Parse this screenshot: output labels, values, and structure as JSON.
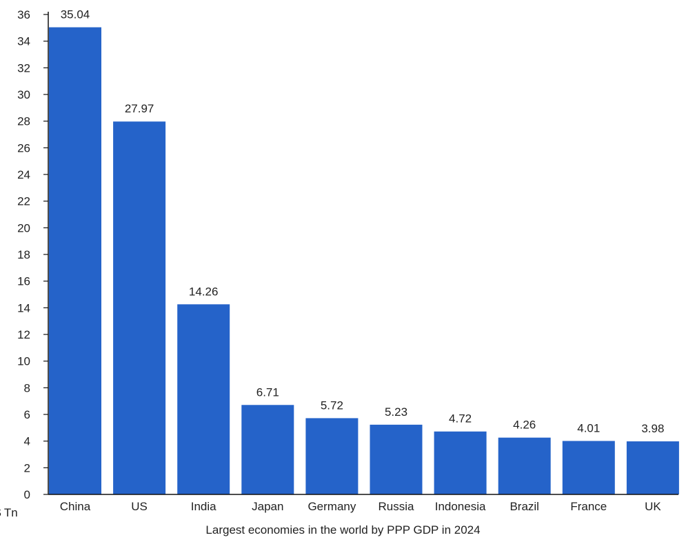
{
  "caption": "Largest economies in the world by PPP GDP in 2024",
  "chart_data": {
    "type": "bar",
    "title": "Largest economies in the world by PPP GDP in 2024",
    "ylabel": "$ Tn",
    "xlabel": "",
    "categories": [
      "China",
      "US",
      "India",
      "Japan",
      "Germany",
      "Russia",
      "Indonesia",
      "Brazil",
      "France",
      "UK"
    ],
    "values": [
      35.04,
      27.97,
      14.26,
      6.71,
      5.72,
      5.23,
      4.72,
      4.26,
      4.01,
      3.98
    ],
    "data_labels": [
      "35.04",
      "27.97",
      "14.26",
      "6.71",
      "5.72",
      "5.23",
      "4.72",
      "4.26",
      "4.01",
      "3.98"
    ],
    "ylim": [
      0,
      36
    ],
    "yticks": [
      0,
      2,
      4,
      6,
      8,
      10,
      12,
      14,
      16,
      18,
      20,
      22,
      24,
      26,
      28,
      30,
      32,
      34,
      36
    ],
    "grid": false,
    "legend": "none",
    "bar_color": "#2563c9",
    "axis_color": "#111111"
  }
}
